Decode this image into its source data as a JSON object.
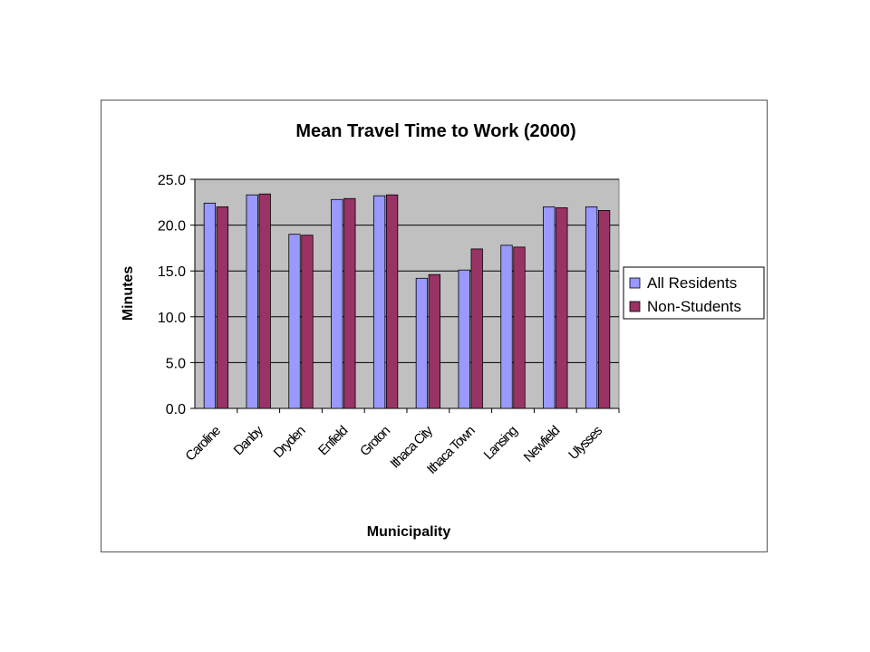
{
  "chart_data": {
    "type": "bar",
    "title": "Mean Travel Time to Work (2000)",
    "xlabel": "Municipality",
    "ylabel": "Minutes",
    "ylim": [
      0,
      25
    ],
    "yticks": [
      "0.0",
      "5.0",
      "10.0",
      "15.0",
      "20.0",
      "25.0"
    ],
    "grid": true,
    "legend_position": "right",
    "plot_background": "#c0c0c0",
    "categories": [
      "Caroline",
      "Danby",
      "Dryden",
      "Enfield",
      "Groton",
      "Ithaca City",
      "Ithaca Town",
      "Lansing",
      "Newfield",
      "Ulysses"
    ],
    "series": [
      {
        "name": "All Residents",
        "color": "#9999ff",
        "values": [
          22.4,
          23.3,
          19.0,
          22.8,
          23.2,
          14.2,
          15.1,
          17.8,
          22.0,
          22.0
        ]
      },
      {
        "name": "Non-Students",
        "color": "#993366",
        "values": [
          22.0,
          23.4,
          18.9,
          22.9,
          23.3,
          14.6,
          17.4,
          17.6,
          21.9,
          21.6
        ]
      }
    ]
  }
}
